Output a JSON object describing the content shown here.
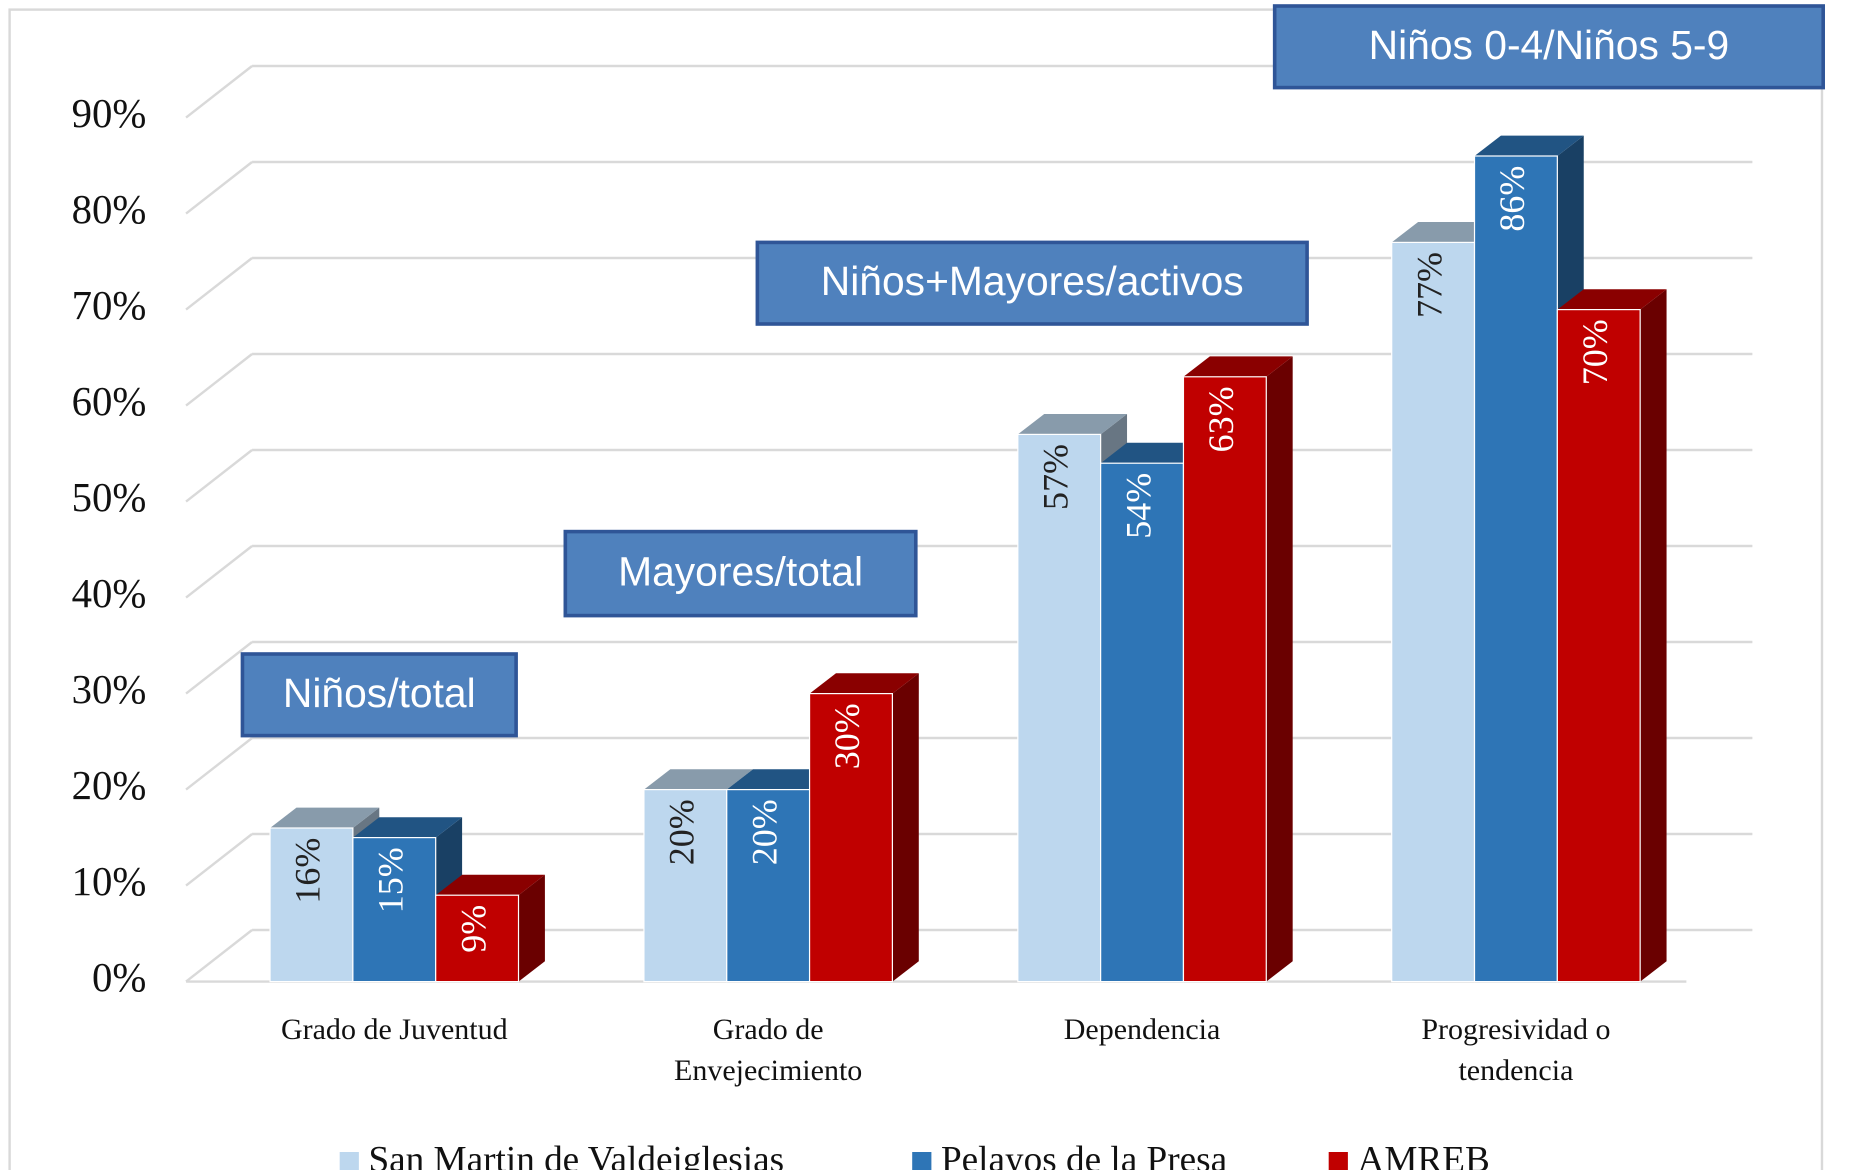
{
  "chart_data": {
    "type": "bar3d",
    "categories": [
      "Grado de Juventud",
      "Grado de Envejecimiento",
      "Dependencia",
      "Progresividad o tendencia"
    ],
    "series": [
      {
        "name": "San Martin de Valdeiglesias",
        "color": "#bdd7ee",
        "values": [
          16,
          20,
          57,
          77
        ],
        "value_labels": [
          "16%",
          "20%",
          "57%",
          "77%"
        ]
      },
      {
        "name": "Pelayos de la Presa",
        "color": "#2e75b6",
        "values": [
          15,
          20,
          54,
          86
        ],
        "value_labels": [
          "15%",
          "20%",
          "54%",
          "86%"
        ]
      },
      {
        "name": "AMREB",
        "color": "#c00000",
        "values": [
          9,
          30,
          63,
          70
        ],
        "value_labels": [
          "9%",
          "30%",
          "63%",
          "70%"
        ]
      }
    ],
    "annotations": [
      "Niños/total",
      "Mayores/total",
      "Niños+Mayores/activos",
      "Niños 0-4/Niños 5-9"
    ],
    "ylim": [
      0,
      90
    ],
    "yticks": [
      {
        "value": 0,
        "label": "0%"
      },
      {
        "value": 10,
        "label": "10%"
      },
      {
        "value": 20,
        "label": "20%"
      },
      {
        "value": 30,
        "label": "30%"
      },
      {
        "value": 40,
        "label": "40%"
      },
      {
        "value": 50,
        "label": "50%"
      },
      {
        "value": 60,
        "label": "60%"
      },
      {
        "value": 70,
        "label": "70%"
      },
      {
        "value": 80,
        "label": "80%"
      },
      {
        "value": 90,
        "label": "90%"
      }
    ],
    "grid": true,
    "legend": "bottom"
  }
}
